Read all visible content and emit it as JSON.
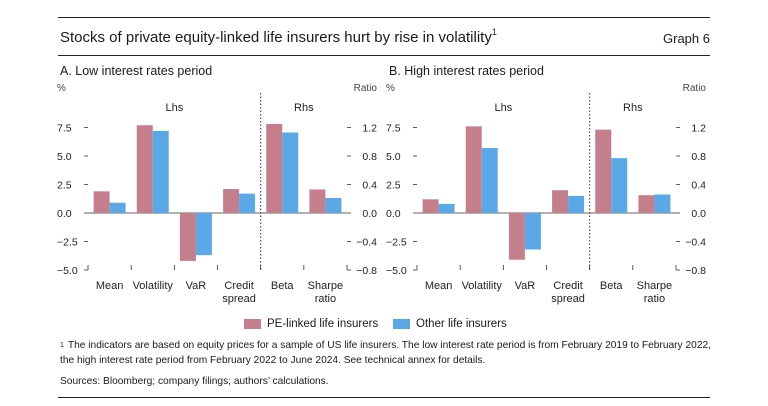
{
  "header": {
    "title": "Stocks of private equity-linked life insurers hurt by rise in volatility",
    "title_note": "1",
    "graph_number": "Graph 6"
  },
  "colors": {
    "pe_linked": "#c57f8c",
    "other": "#5aa9e6"
  },
  "chart_data": [
    {
      "type": "bar",
      "title": "A. Low interest rates period",
      "left_axis": {
        "unit": "%",
        "range": [
          -5.0,
          10.0
        ],
        "ticks": [
          "7.5",
          "5.0",
          "2.5",
          "0.0",
          "−2.5",
          "−5.0"
        ],
        "tick_values": [
          7.5,
          5.0,
          2.5,
          0.0,
          -2.5,
          -5.0
        ]
      },
      "right_axis": {
        "unit": "Ratio",
        "range": [
          -0.8,
          1.6
        ],
        "ticks": [
          "1.2",
          "0.8",
          "0.4",
          "0.0",
          "−0.4",
          "−0.8"
        ],
        "tick_values": [
          1.2,
          0.8,
          0.4,
          0.0,
          -0.4,
          -0.8
        ]
      },
      "sections": [
        "Lhs",
        "Rhs"
      ],
      "categories": [
        "Mean",
        "Volatility",
        "VaR",
        "Credit spread",
        "Beta",
        "Sharpe ratio"
      ],
      "category_lines": [
        [
          "Mean"
        ],
        [
          "Volatility"
        ],
        [
          "VaR"
        ],
        [
          "Credit",
          "spread"
        ],
        [
          "Beta"
        ],
        [
          "Sharpe",
          "ratio"
        ]
      ],
      "category_axis": [
        "left",
        "left",
        "left",
        "left",
        "right",
        "right"
      ],
      "series": [
        {
          "name": "PE-linked life insurers",
          "values": [
            1.9,
            7.7,
            -4.2,
            2.1,
            1.25,
            0.33
          ]
        },
        {
          "name": "Other life insurers",
          "values": [
            0.9,
            7.2,
            -3.7,
            1.7,
            1.13,
            0.21
          ]
        }
      ]
    },
    {
      "type": "bar",
      "title": "B. High interest rates period",
      "left_axis": {
        "unit": "%",
        "range": [
          -5.0,
          10.0
        ],
        "ticks": [
          "7.5",
          "5.0",
          "2.5",
          "0.0",
          "−2.5",
          "−5.0"
        ],
        "tick_values": [
          7.5,
          5.0,
          2.5,
          0.0,
          -2.5,
          -5.0
        ]
      },
      "right_axis": {
        "unit": "Ratio",
        "range": [
          -0.8,
          1.6
        ],
        "ticks": [
          "1.2",
          "0.8",
          "0.4",
          "0.0",
          "−0.4",
          "−0.8"
        ],
        "tick_values": [
          1.2,
          0.8,
          0.4,
          0.0,
          -0.4,
          -0.8
        ]
      },
      "sections": [
        "Lhs",
        "Rhs"
      ],
      "categories": [
        "Mean",
        "Volatility",
        "VaR",
        "Credit spread",
        "Beta",
        "Sharpe ratio"
      ],
      "category_lines": [
        [
          "Mean"
        ],
        [
          "Volatility"
        ],
        [
          "VaR"
        ],
        [
          "Credit",
          "spread"
        ],
        [
          "Beta"
        ],
        [
          "Sharpe",
          "ratio"
        ]
      ],
      "category_axis": [
        "left",
        "left",
        "left",
        "left",
        "right",
        "right"
      ],
      "series": [
        {
          "name": "PE-linked life insurers",
          "values": [
            1.2,
            7.6,
            -4.1,
            2.0,
            1.17,
            0.25
          ]
        },
        {
          "name": "Other life insurers",
          "values": [
            0.8,
            5.7,
            -3.2,
            1.5,
            0.77,
            0.26
          ]
        }
      ]
    }
  ],
  "legend": [
    {
      "label": "PE-linked life insurers",
      "color": "#c57f8c"
    },
    {
      "label": "Other life insurers",
      "color": "#5aa9e6"
    }
  ],
  "footnote": {
    "marker": "1",
    "text": "The indicators are based on equity prices for a sample of US life insurers. The low interest rate period is from February 2019 to February 2022, the high interest rate period from February 2022 to June 2024. See technical annex for details."
  },
  "sources": "Sources: Bloomberg; company filings; authors’ calculations."
}
